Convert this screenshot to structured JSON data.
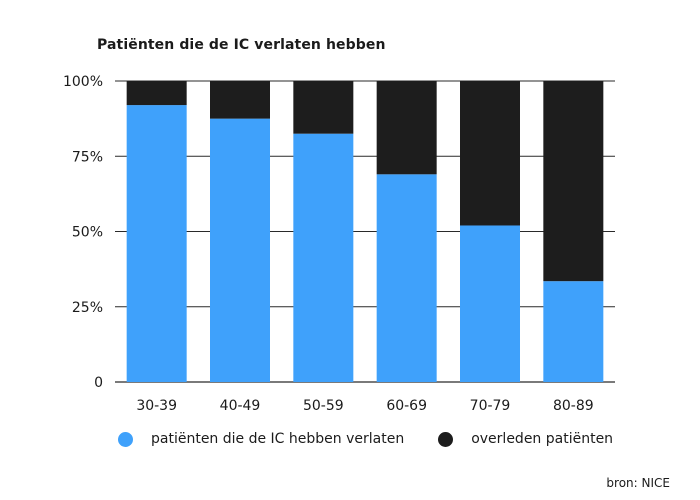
{
  "chart_data": {
    "type": "bar",
    "stacked": true,
    "title": "Patiënten die de IC verlaten hebben",
    "categories": [
      "30-39",
      "40-49",
      "50-59",
      "60-69",
      "70-79",
      "80-89"
    ],
    "series": [
      {
        "name": "patiënten die de IC hebben verlaten",
        "color": "#3fa1fb",
        "values": [
          92,
          87.5,
          82.5,
          69,
          52,
          33.5
        ]
      },
      {
        "name": "overleden patiënten",
        "color": "#1d1d1d",
        "values": [
          8,
          12.5,
          17.5,
          31,
          48,
          66.5
        ]
      }
    ],
    "ylim": [
      0,
      100
    ],
    "yticks": [
      0,
      25,
      50,
      75,
      100
    ],
    "ytick_labels": [
      "0",
      "25%",
      "50%",
      "75%",
      "100%"
    ],
    "xlabel": "",
    "ylabel": "",
    "legend_position": "bottom"
  },
  "source": "bron: NICE"
}
